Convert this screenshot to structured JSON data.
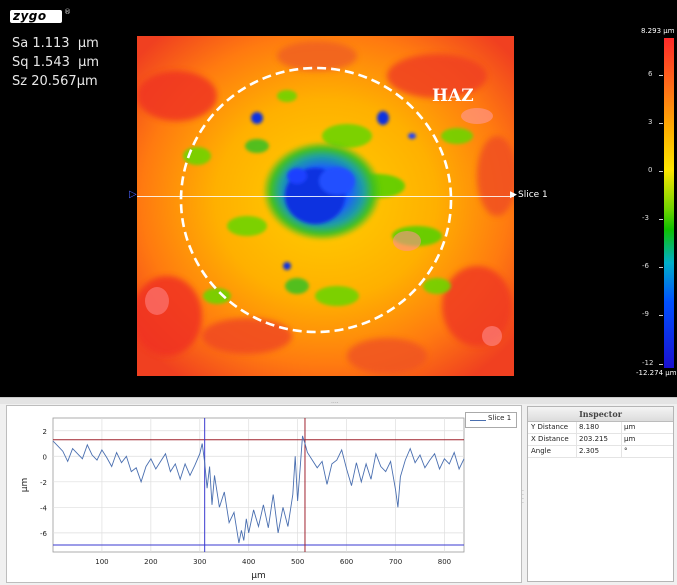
{
  "app": {
    "logo": "zygo",
    "logo_mark": "®"
  },
  "stats": [
    {
      "label": "Sa",
      "value": "1.113",
      "unit": "µm"
    },
    {
      "label": "Sq",
      "value": "1.543",
      "unit": "µm"
    },
    {
      "label": "Sz",
      "value": "20.567",
      "unit": "µm"
    }
  ],
  "map": {
    "annotation": "HAZ",
    "slice_label": "Slice 1"
  },
  "colorbar": {
    "max_label": "8.293 µm",
    "min_label": "-12.274 µm",
    "ticks": [
      "6",
      "3",
      "0",
      "-3",
      "-6",
      "-9",
      "-12"
    ],
    "tick_values": [
      6,
      3,
      0,
      -3,
      -6,
      -9,
      -12
    ],
    "range": [
      -12.274,
      8.293
    ]
  },
  "profile": {
    "legend": "Slice 1",
    "ylabel": "µm",
    "xlabel": "µm",
    "y_ticks": [
      "2",
      "0",
      "-2",
      "-4",
      "-6"
    ],
    "x_ticks": [
      "100",
      "200",
      "300",
      "400",
      "500",
      "600",
      "700",
      "800"
    ]
  },
  "chart_data": {
    "type": "line",
    "title": "",
    "xlabel": "µm",
    "ylabel": "µm",
    "xlim": [
      0,
      840
    ],
    "ylim": [
      -7.5,
      3
    ],
    "grid": true,
    "legend": "top-right",
    "series": [
      {
        "name": "Slice 1",
        "x": [
          0,
          10,
          20,
          30,
          40,
          50,
          60,
          70,
          80,
          90,
          100,
          110,
          120,
          130,
          140,
          150,
          160,
          170,
          180,
          190,
          200,
          210,
          220,
          230,
          240,
          250,
          260,
          270,
          280,
          290,
          300,
          305,
          310,
          315,
          320,
          325,
          330,
          340,
          350,
          360,
          370,
          380,
          385,
          390,
          395,
          400,
          410,
          420,
          430,
          440,
          450,
          460,
          470,
          480,
          490,
          495,
          500,
          505,
          510,
          515,
          520,
          530,
          540,
          550,
          560,
          570,
          580,
          590,
          600,
          610,
          620,
          630,
          640,
          650,
          660,
          670,
          680,
          690,
          700,
          705,
          710,
          720,
          730,
          740,
          750,
          760,
          770,
          780,
          790,
          800,
          810,
          820,
          830,
          840
        ],
        "y": [
          1.2,
          0.8,
          0.4,
          -0.4,
          0.6,
          0.2,
          -0.2,
          0.9,
          0.1,
          -0.3,
          0.5,
          -0.1,
          -0.8,
          0.3,
          -0.5,
          0.0,
          -1.2,
          -0.9,
          -2.0,
          -0.8,
          -0.2,
          -1.0,
          -0.4,
          0.2,
          -1.2,
          -0.6,
          -1.8,
          -0.6,
          -1.5,
          -0.7,
          0.2,
          1.0,
          -0.5,
          -2.5,
          -0.8,
          -3.8,
          -1.5,
          -4.0,
          -2.8,
          -5.2,
          -4.4,
          -6.8,
          -5.8,
          -6.6,
          -4.9,
          -6.0,
          -4.2,
          -5.5,
          -3.8,
          -5.6,
          -3.0,
          -6.0,
          -4.0,
          -5.5,
          -3.0,
          0.0,
          -3.5,
          -1.0,
          1.6,
          1.0,
          0.3,
          -0.3,
          -0.9,
          -0.4,
          -2.2,
          -0.6,
          -0.3,
          0.5,
          -1.0,
          -2.3,
          -0.5,
          -2.0,
          -0.6,
          -1.8,
          0.2,
          -0.8,
          -1.2,
          -0.4,
          -2.6,
          -4.0,
          -1.6,
          -0.3,
          0.6,
          -0.5,
          0.1,
          -0.9,
          -0.3,
          0.2,
          -1.0,
          -0.2,
          -0.6,
          0.3,
          -1.0,
          -0.2
        ]
      }
    ],
    "reference_lines": {
      "vertical_blue_x": 310,
      "vertical_red_x": 515,
      "horizontal_red_y": 1.3,
      "horizontal_blue_y": -6.95
    }
  },
  "inspector": {
    "title": "Inspector",
    "rows": [
      {
        "name": "Y Distance",
        "value": "8.180",
        "unit": "µm"
      },
      {
        "name": "X Distance",
        "value": "203.215",
        "unit": "µm"
      },
      {
        "name": "Angle",
        "value": "2.305",
        "unit": "°"
      }
    ]
  },
  "colors": {
    "accent_blue": "#3a3ad0",
    "accent_red": "#a0232f",
    "line": "#4a6fb0"
  }
}
